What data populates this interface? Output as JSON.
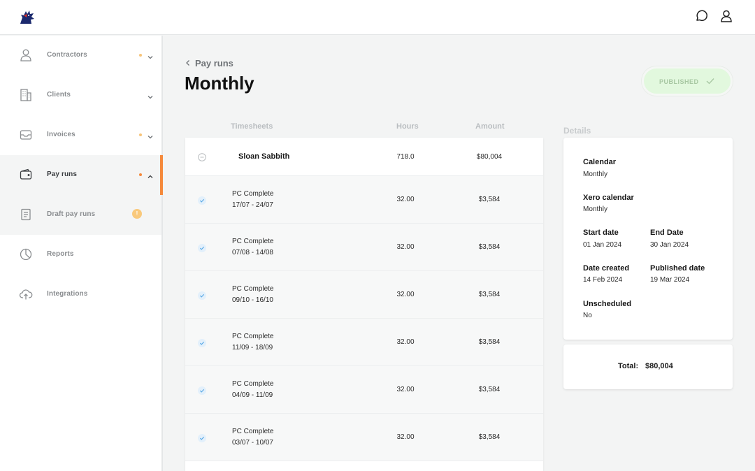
{
  "colors": {
    "accent": "#f5893b",
    "published_bg": "#e2f8de",
    "check_blue": "#5aa9e6"
  },
  "topbar": {
    "logo_icon": "wolf-logo-icon",
    "icons": [
      "chat-icon",
      "user-icon"
    ]
  },
  "sidebar": {
    "items": [
      {
        "label": "Contractors",
        "icon": "user-icon",
        "dot": true,
        "chevron": "down"
      },
      {
        "label": "Clients",
        "icon": "building-icon",
        "dot": false,
        "chevron": "down"
      },
      {
        "label": "Invoices",
        "icon": "inbox-icon",
        "dot": true,
        "chevron": "down"
      },
      {
        "label": "Pay runs",
        "icon": "wallet-icon",
        "dot": true,
        "chevron": "up",
        "active": true
      },
      {
        "label": "Draft pay runs",
        "icon": "document-icon",
        "badge": "!",
        "sub": true
      },
      {
        "label": "Reports",
        "icon": "pie-chart-icon"
      },
      {
        "label": "Integrations",
        "icon": "cloud-upload-icon"
      }
    ]
  },
  "header": {
    "back_label": "Pay runs",
    "title": "Monthly",
    "status_label": "PUBLISHED"
  },
  "table": {
    "columns": {
      "timesheets": "Timesheets",
      "hours": "Hours",
      "amount": "Amount"
    },
    "contractor": {
      "name": "Sloan Sabbith",
      "hours": "718.0",
      "amount": "$80,004"
    },
    "rows": [
      {
        "title": "PC Complete",
        "period": "17/07 - 24/07",
        "hours": "32.00",
        "amount": "$3,584"
      },
      {
        "title": "PC Complete",
        "period": "07/08 - 14/08",
        "hours": "32.00",
        "amount": "$3,584"
      },
      {
        "title": "PC Complete",
        "period": "09/10 - 16/10",
        "hours": "32.00",
        "amount": "$3,584"
      },
      {
        "title": "PC Complete",
        "period": "11/09 - 18/09",
        "hours": "32.00",
        "amount": "$3,584"
      },
      {
        "title": "PC Complete",
        "period": "04/09 - 11/09",
        "hours": "32.00",
        "amount": "$3,584"
      },
      {
        "title": "PC Complete",
        "period": "03/07 - 10/07",
        "hours": "32.00",
        "amount": "$3,584"
      }
    ]
  },
  "details": {
    "heading": "Details",
    "calendar_label": "Calendar",
    "calendar_value": "Monthly",
    "xero_label": "Xero calendar",
    "xero_value": "Monthly",
    "start_label": "Start date",
    "start_value": "01 Jan 2024",
    "end_label": "End Date",
    "end_value": "30 Jan 2024",
    "created_label": "Date created",
    "created_value": "14 Feb 2024",
    "published_label": "Published date",
    "published_value": "19 Mar 2024",
    "unscheduled_label": "Unscheduled",
    "unscheduled_value": "No"
  },
  "total": {
    "label": "Total:",
    "value": "$80,004"
  }
}
